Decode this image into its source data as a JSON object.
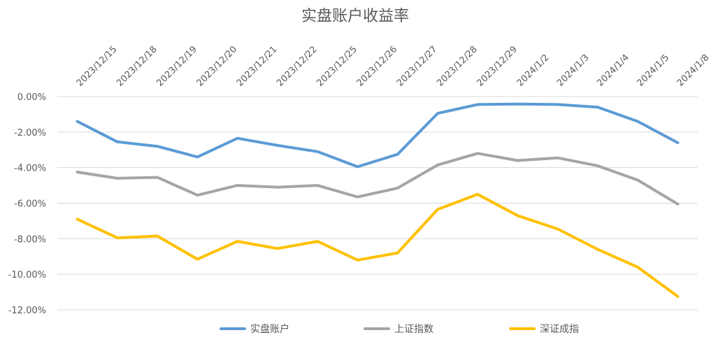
{
  "chart_data": {
    "type": "line",
    "title": "实盘账户收益率",
    "categories": [
      "2023/12/15",
      "2023/12/18",
      "2023/12/19",
      "2023/12/20",
      "2023/12/21",
      "2023/12/22",
      "2023/12/25",
      "2023/12/26",
      "2023/12/27",
      "2023/12/28",
      "2023/12/29",
      "2024/1/2",
      "2024/1/3",
      "2024/1/4",
      "2024/1/5",
      "2024/1/8"
    ],
    "y_tick_labels": [
      "0.00%",
      "-2.00%",
      "-4.00%",
      "-6.00%",
      "-8.00%",
      "-10.00%",
      "-12.00%"
    ],
    "ylim": [
      -12,
      0
    ],
    "y_unit": "%",
    "grid": "horizontal",
    "legend_position": "bottom",
    "series": [
      {
        "name": "实盘账户",
        "color": "#5b9bd5",
        "values": [
          -1.4,
          -2.55,
          -2.8,
          -3.4,
          -2.35,
          -2.75,
          -3.1,
          -3.95,
          -3.25,
          -0.95,
          -0.45,
          -0.42,
          -0.45,
          -0.6,
          -1.4,
          -2.6
        ]
      },
      {
        "name": "上证指数",
        "color": "#a5a5a5",
        "values": [
          -4.25,
          -4.6,
          -4.55,
          -5.55,
          -5.0,
          -5.1,
          -5.0,
          -5.65,
          -5.15,
          -3.85,
          -3.2,
          -3.6,
          -3.45,
          -3.9,
          -4.7,
          -6.05
        ]
      },
      {
        "name": "深证成指",
        "color": "#ffc000",
        "values": [
          -6.9,
          -7.95,
          -7.85,
          -9.15,
          -8.15,
          -8.55,
          -8.15,
          -9.2,
          -8.8,
          -6.35,
          -5.5,
          -6.7,
          -7.45,
          -8.6,
          -9.6,
          -11.25
        ]
      }
    ]
  }
}
